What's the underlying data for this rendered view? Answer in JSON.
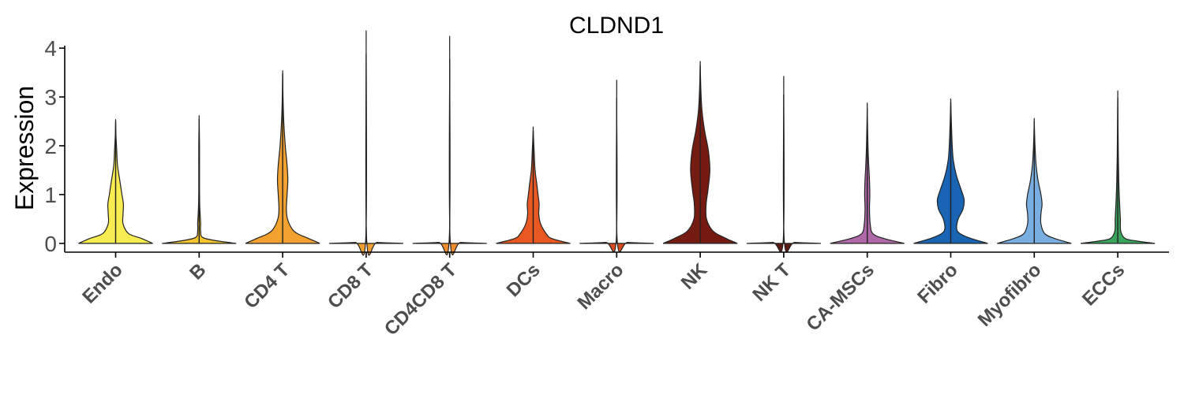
{
  "chart_data": {
    "type": "violin",
    "title": "CLDND1",
    "xlabel": "",
    "ylabel": "Expression",
    "ylim": [
      -0.18,
      4.05
    ],
    "yticks": [
      0,
      1,
      2,
      3,
      4
    ],
    "ytick_labels": [
      "0",
      "1",
      "2",
      "3",
      "4"
    ],
    "grid": false,
    "legend": "none",
    "categories": [
      "Endo",
      "B",
      "CD4 T",
      "CD8 T",
      "CD4CD8 T",
      "DCs",
      "Macro",
      "NK",
      "NK T",
      "CA-MSCs",
      "Fibro",
      "Myofibro",
      "ECCs"
    ],
    "series": [
      {
        "category": "Endo",
        "color": "#f7ec50",
        "max": 2.5,
        "profile": [
          [
            0,
            1
          ],
          [
            0.1,
            0.7
          ],
          [
            0.2,
            0.35
          ],
          [
            0.4,
            0.2
          ],
          [
            0.6,
            0.2
          ],
          [
            0.8,
            0.21
          ],
          [
            1.0,
            0.17
          ],
          [
            1.3,
            0.11
          ],
          [
            1.6,
            0.05
          ],
          [
            1.9,
            0.03
          ],
          [
            2.2,
            0.01
          ],
          [
            2.5,
            0
          ]
        ]
      },
      {
        "category": "B",
        "color": "#f5c52f",
        "max": 2.55,
        "profile": [
          [
            0,
            1
          ],
          [
            0.05,
            0.5
          ],
          [
            0.12,
            0.1
          ],
          [
            0.25,
            0.04
          ],
          [
            0.4,
            0.04
          ],
          [
            0.55,
            0.03
          ],
          [
            0.8,
            0.015
          ],
          [
            1.2,
            0.01
          ],
          [
            2.0,
            0.01
          ],
          [
            2.55,
            0
          ]
        ]
      },
      {
        "category": "CD4 T",
        "color": "#f3a230",
        "max": 3.48,
        "profile": [
          [
            0,
            1
          ],
          [
            0.1,
            0.7
          ],
          [
            0.2,
            0.4
          ],
          [
            0.3,
            0.25
          ],
          [
            0.5,
            0.13
          ],
          [
            0.7,
            0.1
          ],
          [
            1.0,
            0.12
          ],
          [
            1.3,
            0.14
          ],
          [
            1.6,
            0.12
          ],
          [
            2.0,
            0.07
          ],
          [
            2.5,
            0.03
          ],
          [
            3.0,
            0.01
          ],
          [
            3.48,
            0
          ]
        ]
      },
      {
        "category": "CD8 T",
        "color": "#f0a030",
        "max": 3.88,
        "profile": [
          [
            0,
            1
          ],
          [
            0.02,
            0.3
          ],
          [
            0.05,
            0.015
          ],
          [
            3.88,
            0
          ]
        ]
      },
      {
        "category": "CD4CD8 T",
        "color": "#ee8d2c",
        "max": 3.78,
        "profile": [
          [
            0,
            1
          ],
          [
            0.02,
            0.3
          ],
          [
            0.05,
            0.015
          ],
          [
            3.78,
            0
          ]
        ]
      },
      {
        "category": "DCs",
        "color": "#e85822",
        "max": 2.32,
        "profile": [
          [
            0,
            1
          ],
          [
            0.1,
            0.5
          ],
          [
            0.2,
            0.35
          ],
          [
            0.4,
            0.2
          ],
          [
            0.6,
            0.15
          ],
          [
            0.8,
            0.16
          ],
          [
            1.0,
            0.13
          ],
          [
            1.2,
            0.1
          ],
          [
            1.5,
            0.05
          ],
          [
            1.8,
            0.03
          ],
          [
            2.32,
            0
          ]
        ]
      },
      {
        "category": "Macro",
        "color": "#d84a1f",
        "max": 2.98,
        "profile": [
          [
            0,
            1
          ],
          [
            0.02,
            0.3
          ],
          [
            0.05,
            0.015
          ],
          [
            2.98,
            0
          ]
        ]
      },
      {
        "category": "NK",
        "color": "#761b12",
        "max": 3.66,
        "profile": [
          [
            0,
            1
          ],
          [
            0.1,
            0.7
          ],
          [
            0.25,
            0.35
          ],
          [
            0.5,
            0.17
          ],
          [
            0.8,
            0.16
          ],
          [
            1.1,
            0.21
          ],
          [
            1.5,
            0.26
          ],
          [
            1.9,
            0.22
          ],
          [
            2.3,
            0.12
          ],
          [
            2.7,
            0.05
          ],
          [
            3.1,
            0.02
          ],
          [
            3.66,
            0
          ]
        ]
      },
      {
        "category": "NK T",
        "color": "#5a1a10",
        "max": 3.05,
        "profile": [
          [
            0,
            1
          ],
          [
            0.02,
            0.3
          ],
          [
            0.05,
            0.015
          ],
          [
            3.05,
            0
          ]
        ]
      },
      {
        "category": "CA-MSCs",
        "color": "#b069a8",
        "max": 2.78,
        "profile": [
          [
            0,
            1
          ],
          [
            0.1,
            0.45
          ],
          [
            0.2,
            0.15
          ],
          [
            0.4,
            0.08
          ],
          [
            0.7,
            0.06
          ],
          [
            1.0,
            0.07
          ],
          [
            1.3,
            0.06
          ],
          [
            1.6,
            0.04
          ],
          [
            2.0,
            0.02
          ],
          [
            2.78,
            0
          ]
        ]
      },
      {
        "category": "Fibro",
        "color": "#1a64b4",
        "max": 2.9,
        "profile": [
          [
            0,
            1
          ],
          [
            0.1,
            0.55
          ],
          [
            0.2,
            0.25
          ],
          [
            0.3,
            0.16
          ],
          [
            0.5,
            0.2
          ],
          [
            0.7,
            0.33
          ],
          [
            0.9,
            0.36
          ],
          [
            1.1,
            0.28
          ],
          [
            1.4,
            0.15
          ],
          [
            1.7,
            0.07
          ],
          [
            2.0,
            0.04
          ],
          [
            2.4,
            0.02
          ],
          [
            2.9,
            0
          ]
        ]
      },
      {
        "category": "Myofibro",
        "color": "#78aee0",
        "max": 2.5,
        "profile": [
          [
            0,
            1
          ],
          [
            0.1,
            0.55
          ],
          [
            0.2,
            0.28
          ],
          [
            0.4,
            0.18
          ],
          [
            0.6,
            0.18
          ],
          [
            0.8,
            0.21
          ],
          [
            1.0,
            0.18
          ],
          [
            1.3,
            0.1
          ],
          [
            1.6,
            0.05
          ],
          [
            2.0,
            0.02
          ],
          [
            2.5,
            0
          ]
        ]
      },
      {
        "category": "ECCs",
        "color": "#3aa35c",
        "max": 2.98,
        "profile": [
          [
            0,
            1
          ],
          [
            0.05,
            0.5
          ],
          [
            0.1,
            0.2
          ],
          [
            0.25,
            0.08
          ],
          [
            0.5,
            0.07
          ],
          [
            0.8,
            0.05
          ],
          [
            1.2,
            0.03
          ],
          [
            1.8,
            0.015
          ],
          [
            2.98,
            0
          ]
        ]
      }
    ]
  }
}
